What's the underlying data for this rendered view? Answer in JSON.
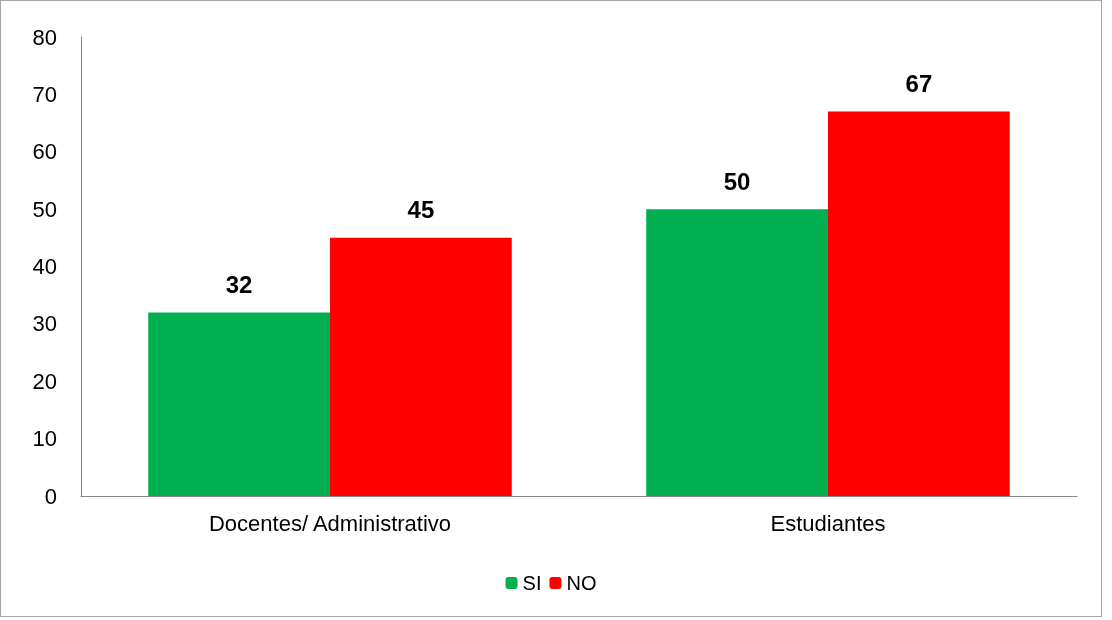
{
  "chart_data": {
    "type": "bar",
    "categories": [
      "Docentes/ Administrativo",
      "Estudiantes"
    ],
    "series": [
      {
        "name": "SI",
        "color": "#00b050",
        "values": [
          32,
          50
        ]
      },
      {
        "name": "NO",
        "color": "#ff0000",
        "values": [
          45,
          67
        ]
      }
    ],
    "ylim": [
      0,
      80
    ],
    "yticks": [
      0,
      10,
      20,
      30,
      40,
      50,
      60,
      70,
      80
    ],
    "grid": false,
    "legend": "bottom",
    "data_labels": true
  }
}
